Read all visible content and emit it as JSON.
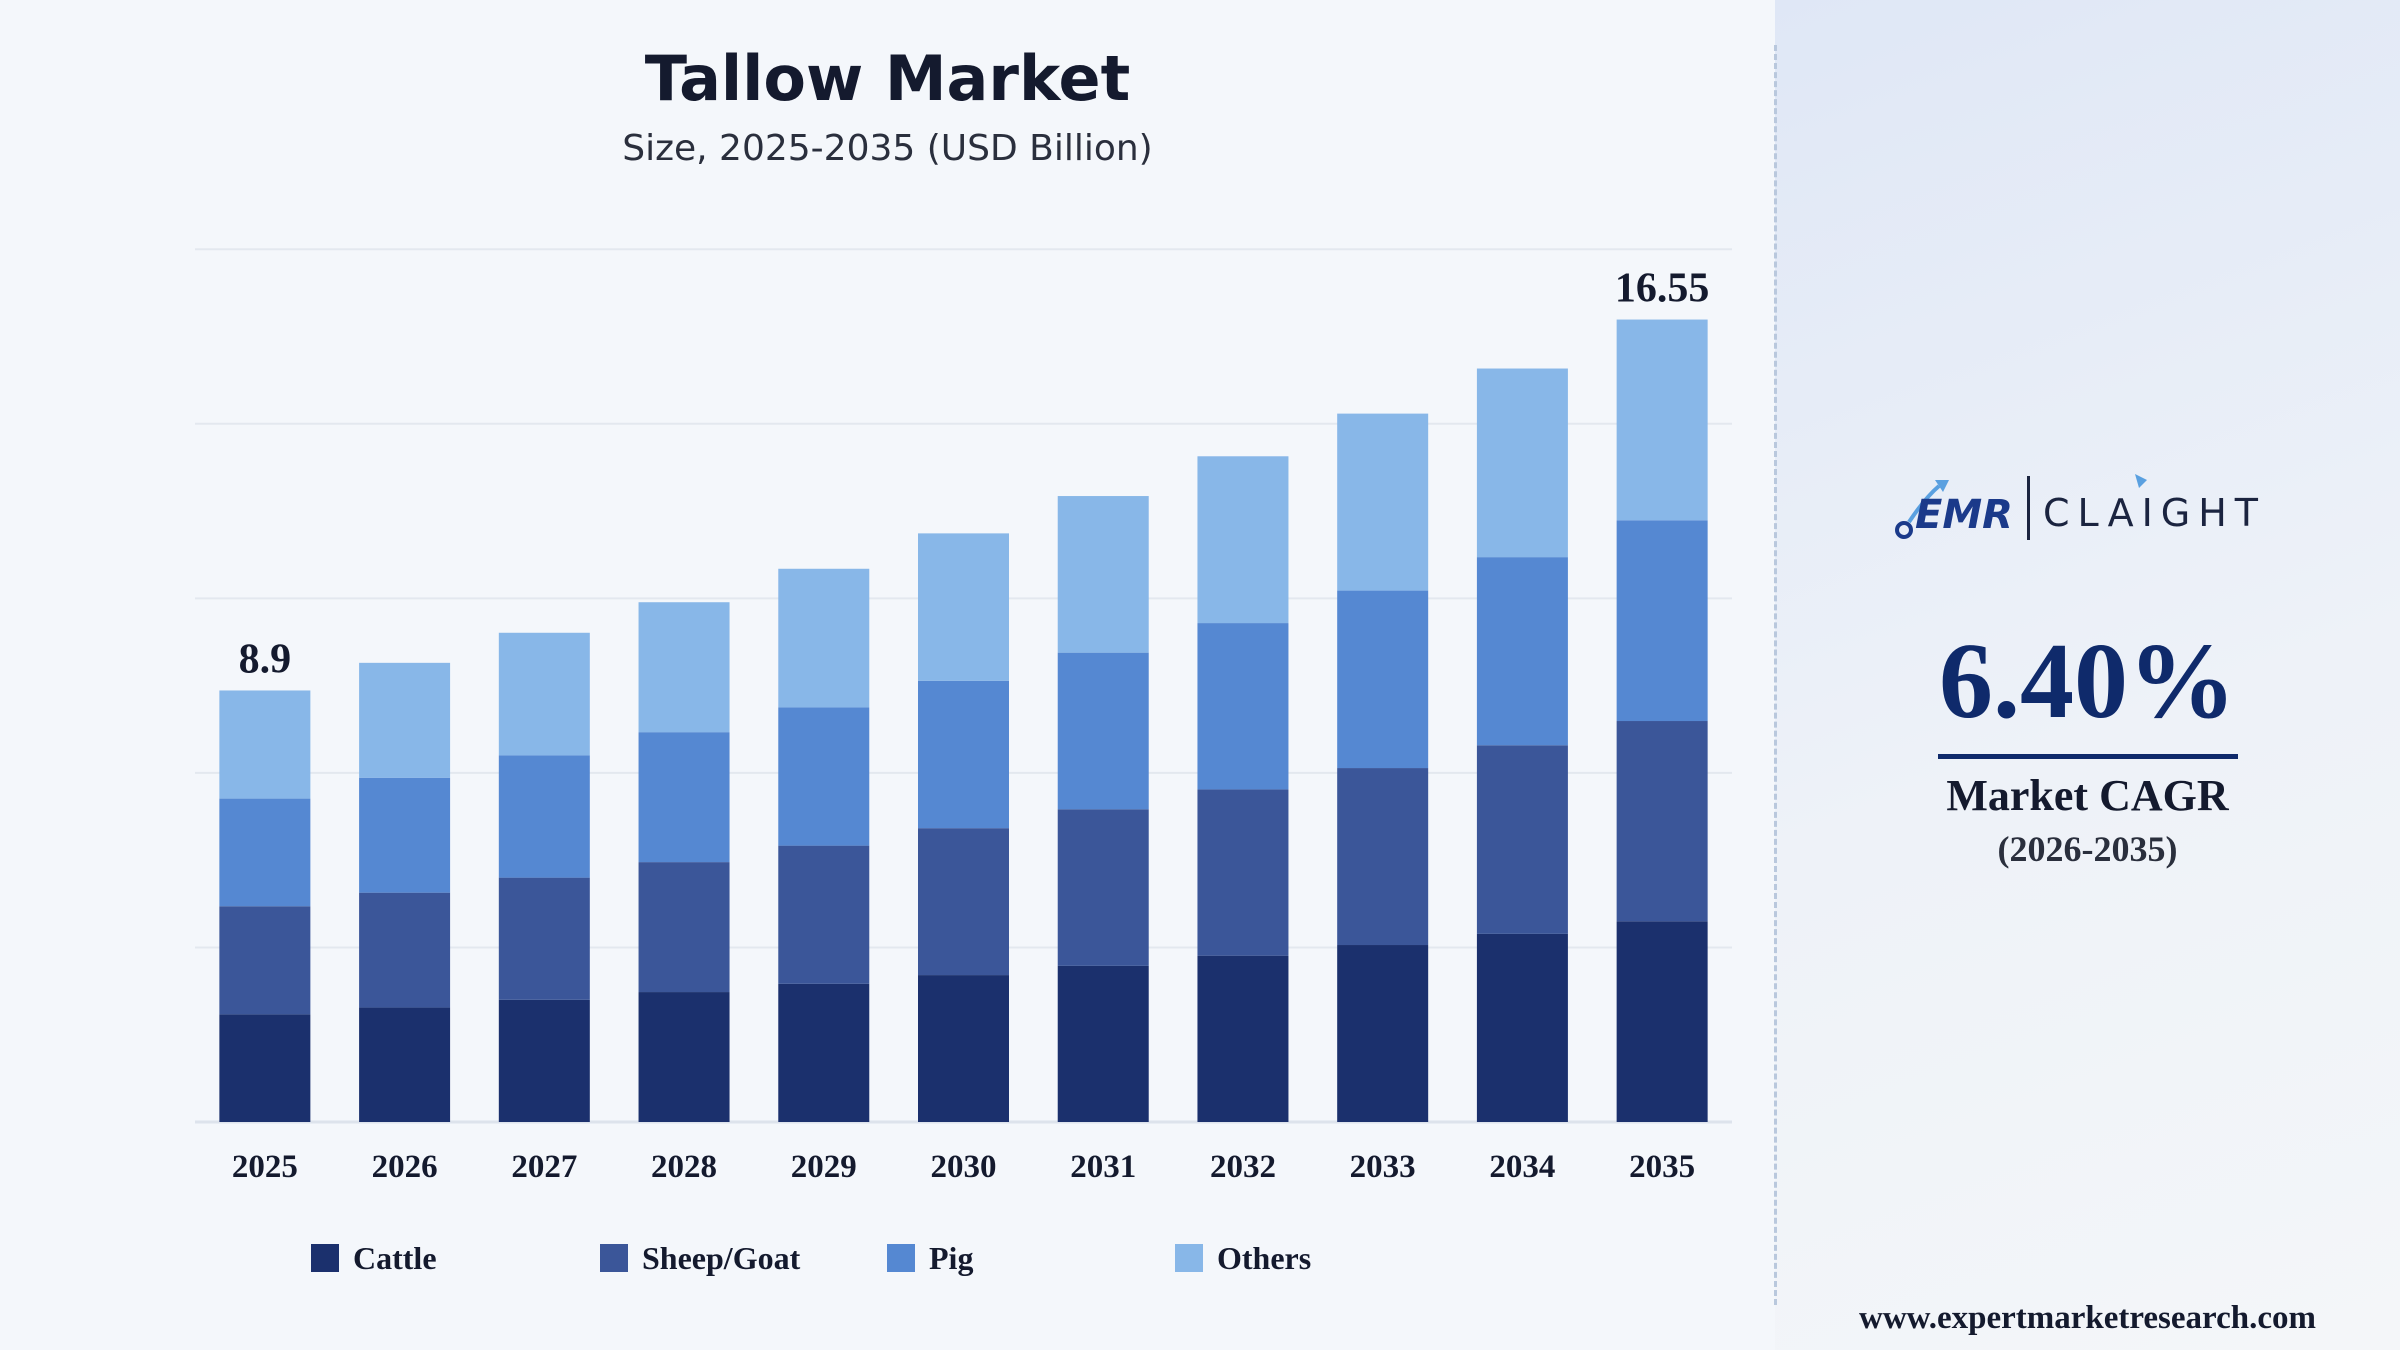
{
  "header": {
    "title": "Tallow Market",
    "subtitle": "Size, 2025-2035 (USD Billion)"
  },
  "chart_data": {
    "type": "bar",
    "stacked": true,
    "title": "Tallow Market",
    "subtitle": "Size, 2025-2035 (USD Billion)",
    "categories": [
      "2025",
      "2026",
      "2027",
      "2028",
      "2029",
      "2030",
      "2031",
      "2032",
      "2033",
      "2034",
      "2035"
    ],
    "series": [
      {
        "name": "Cattle",
        "color": "#1b306d",
        "values": [
          2.22,
          2.36,
          2.52,
          2.68,
          2.85,
          3.03,
          3.22,
          3.43,
          3.65,
          3.88,
          4.14
        ]
      },
      {
        "name": "Sheep/Goat",
        "color": "#3b5699",
        "values": [
          2.23,
          2.37,
          2.52,
          2.68,
          2.85,
          3.03,
          3.23,
          3.43,
          3.65,
          3.89,
          4.13
        ]
      },
      {
        "name": "Pig",
        "color": "#5588d2",
        "values": [
          2.22,
          2.37,
          2.52,
          2.68,
          2.85,
          3.04,
          3.23,
          3.43,
          3.66,
          3.88,
          4.14
        ]
      },
      {
        "name": "Others",
        "color": "#88b7e8",
        "values": [
          2.23,
          2.37,
          2.53,
          2.68,
          2.86,
          3.04,
          3.23,
          3.44,
          3.65,
          3.89,
          4.14
        ]
      }
    ],
    "data_labels": [
      {
        "category": "2025",
        "text": "8.9"
      },
      {
        "category": "2035",
        "text": "16.55"
      }
    ],
    "ylim": [
      0,
      18.5
    ],
    "grid": true,
    "legend_position": "bottom"
  },
  "legend": [
    {
      "label": "Cattle",
      "color": "#1b306d"
    },
    {
      "label": "Sheep/Goat",
      "color": "#3b5699"
    },
    {
      "label": "Pig",
      "color": "#5588d2"
    },
    {
      "label": "Others",
      "color": "#88b7e8"
    }
  ],
  "sidebar": {
    "logo_left": "EMR",
    "logo_right": "CLAIGHT",
    "cagr_value": "6.40%",
    "cagr_label": "Market CAGR",
    "cagr_period": "(2026-2035)",
    "website": "www.expertmarketresearch.com"
  }
}
